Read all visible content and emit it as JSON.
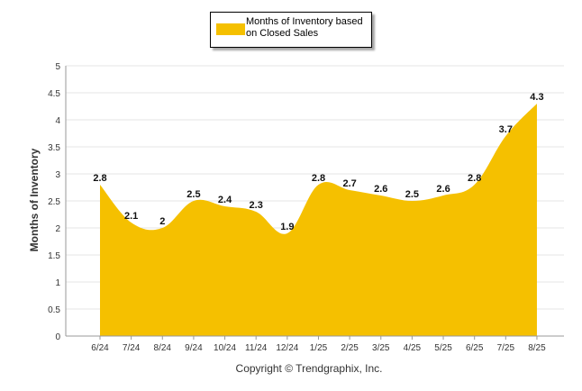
{
  "chart_data": {
    "type": "area",
    "categories": [
      "6/24",
      "7/24",
      "8/24",
      "9/24",
      "10/24",
      "11/24",
      "12/24",
      "1/25",
      "2/25",
      "3/25",
      "4/25",
      "5/25",
      "6/25",
      "7/25",
      "8/25"
    ],
    "series": [
      {
        "name": "Months of Inventory based on Closed Sales",
        "values": [
          2.8,
          2.1,
          2,
          2.5,
          2.4,
          2.3,
          1.9,
          2.8,
          2.7,
          2.6,
          2.5,
          2.6,
          2.8,
          3.7,
          4.3
        ],
        "data_labels": [
          "2.8",
          "2.1",
          "2",
          "2.5",
          "2.4",
          "2.3",
          "1.9",
          "2.8",
          "2.7",
          "2.6",
          "2.5",
          "2.6",
          "2.8",
          "3.7",
          "4.3"
        ],
        "color": "#F5C000"
      }
    ],
    "ylabel": "Months of Inventory",
    "xlabel": "",
    "ylim": [
      0,
      5
    ],
    "yticks": [
      "0",
      "0.5",
      "1",
      "1.5",
      "2",
      "2.5",
      "3",
      "3.5",
      "4",
      "4.5",
      "5"
    ],
    "grid": true,
    "legend_position": "top-center"
  },
  "legend": {
    "label_line1": "Months of Inventory based",
    "label_line2": "on Closed Sales"
  },
  "footer": {
    "copyright": "Copyright © Trendgraphix, Inc."
  },
  "colors": {
    "fill": "#F5C000",
    "grid": "#e6e6e6",
    "axis": "#999999"
  }
}
